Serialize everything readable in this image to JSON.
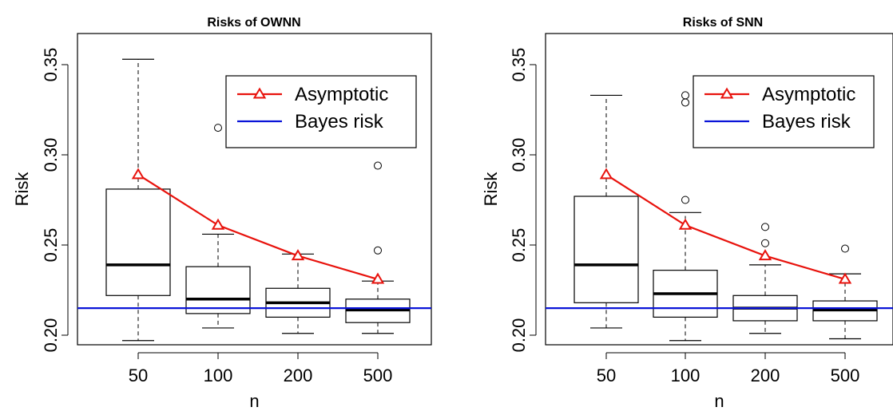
{
  "chart_data": [
    {
      "type": "box",
      "title": "Risks of OWNN",
      "xlabel": "n",
      "ylabel": "Risk",
      "categories": [
        "50",
        "100",
        "200",
        "500"
      ],
      "ylim": [
        0.195,
        0.355
      ],
      "yticks": [
        "0.20",
        "0.25",
        "0.30",
        "0.35"
      ],
      "boxes": [
        {
          "category": "50",
          "whisker_low": 0.197,
          "q1": 0.222,
          "median": 0.239,
          "q3": 0.281,
          "whisker_high": 0.353,
          "outliers": []
        },
        {
          "category": "100",
          "whisker_low": 0.204,
          "q1": 0.212,
          "median": 0.22,
          "q3": 0.238,
          "whisker_high": 0.256,
          "outliers": [
            0.315
          ]
        },
        {
          "category": "200",
          "whisker_low": 0.201,
          "q1": 0.21,
          "median": 0.218,
          "q3": 0.226,
          "whisker_high": 0.245,
          "outliers": []
        },
        {
          "category": "500",
          "whisker_low": 0.201,
          "q1": 0.207,
          "median": 0.214,
          "q3": 0.22,
          "whisker_high": 0.23,
          "outliers": [
            0.247,
            0.294
          ]
        }
      ],
      "series": [
        {
          "name": "Asymptotic",
          "type": "line",
          "marker": "triangle",
          "color": "#e8120c",
          "values": [
            0.289,
            0.261,
            0.244,
            0.231
          ]
        },
        {
          "name": "Bayes risk",
          "type": "hline",
          "color": "#0a14d8",
          "value": 0.215
        }
      ],
      "legend": "top-right"
    },
    {
      "type": "box",
      "title": "Risks of SNN",
      "xlabel": "n",
      "ylabel": "Risk",
      "categories": [
        "50",
        "100",
        "200",
        "500"
      ],
      "ylim": [
        0.195,
        0.355
      ],
      "yticks": [
        "0.20",
        "0.25",
        "0.30",
        "0.35"
      ],
      "boxes": [
        {
          "category": "50",
          "whisker_low": 0.204,
          "q1": 0.218,
          "median": 0.239,
          "q3": 0.277,
          "whisker_high": 0.333,
          "outliers": []
        },
        {
          "category": "100",
          "whisker_low": 0.197,
          "q1": 0.21,
          "median": 0.223,
          "q3": 0.236,
          "whisker_high": 0.268,
          "outliers": [
            0.275,
            0.329,
            0.333
          ]
        },
        {
          "category": "200",
          "whisker_low": 0.201,
          "q1": 0.208,
          "median": 0.215,
          "q3": 0.222,
          "whisker_high": 0.239,
          "outliers": [
            0.251,
            0.26
          ]
        },
        {
          "category": "500",
          "whisker_low": 0.198,
          "q1": 0.208,
          "median": 0.214,
          "q3": 0.219,
          "whisker_high": 0.234,
          "outliers": [
            0.248
          ]
        }
      ],
      "series": [
        {
          "name": "Asymptotic",
          "type": "line",
          "marker": "triangle",
          "color": "#e8120c",
          "values": [
            0.289,
            0.261,
            0.244,
            0.231
          ]
        },
        {
          "name": "Bayes risk",
          "type": "hline",
          "color": "#0a14d8",
          "value": 0.215
        }
      ],
      "legend": "top-right"
    }
  ]
}
